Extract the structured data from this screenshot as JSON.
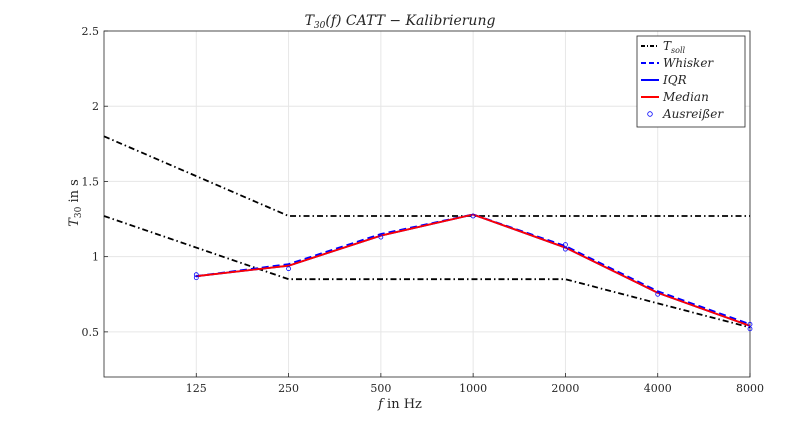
{
  "chart_data": {
    "type": "line",
    "title": {
      "main": "T",
      "sub": "30",
      "rest": "(f) CATT − Kalibrierung"
    },
    "xlabel": {
      "var": "f",
      "rest": " in Hz"
    },
    "ylabel": {
      "main": "T",
      "sub": "30",
      "rest": " in s"
    },
    "x_scale": "log2",
    "xlim": [
      62.5,
      8000
    ],
    "ylim": [
      0.2,
      2.5
    ],
    "x_ticks": [
      125,
      250,
      500,
      1000,
      2000,
      4000,
      8000
    ],
    "x_tick_labels": [
      "125",
      "250",
      "500",
      "1000",
      "2000",
      "4000",
      "8000"
    ],
    "y_ticks": [
      0.5,
      1,
      1.5,
      2,
      2.5
    ],
    "y_tick_labels": [
      "0.5",
      "1",
      "1.5",
      "2",
      "2.5"
    ],
    "grid": true,
    "legend_position": "top-right",
    "series": [
      {
        "name": "T_soll",
        "legend": {
          "main": "T",
          "sub": "soll"
        },
        "style": "dashdot",
        "color": "#000000",
        "upper": {
          "x": [
            62.5,
            250,
            8000
          ],
          "y": [
            1.8,
            1.27,
            1.27
          ]
        },
        "lower": {
          "x": [
            62.5,
            250,
            2000,
            8000
          ],
          "y": [
            1.27,
            0.85,
            0.85,
            0.53
          ]
        }
      },
      {
        "name": "Whisker",
        "legend": {
          "main": "Whisker"
        },
        "style": "dashed",
        "color": "#0000ff",
        "x": [
          125,
          250,
          500,
          1000,
          2000,
          4000,
          8000
        ],
        "y": [
          0.87,
          0.95,
          1.15,
          1.28,
          1.07,
          0.77,
          0.55
        ]
      },
      {
        "name": "IQR",
        "legend": {
          "main": "IQR"
        },
        "style": "solid",
        "color": "#0000ff",
        "x": [
          125,
          250,
          500,
          1000,
          2000,
          4000,
          8000
        ],
        "y": [
          0.87,
          0.94,
          1.14,
          1.28,
          1.06,
          0.76,
          0.54
        ]
      },
      {
        "name": "Median",
        "legend": {
          "main": "Median"
        },
        "style": "solid",
        "color": "#ff0000",
        "x": [
          125,
          250,
          500,
          1000,
          2000,
          4000,
          8000
        ],
        "y": [
          0.87,
          0.94,
          1.14,
          1.28,
          1.06,
          0.76,
          0.54
        ]
      },
      {
        "name": "Ausreißer",
        "legend": {
          "main": "Ausreißer"
        },
        "style": "markers",
        "color": "#0000ff",
        "x": [
          125,
          125,
          250,
          500,
          1000,
          2000,
          2000,
          4000,
          8000,
          8000
        ],
        "y": [
          0.86,
          0.88,
          0.92,
          1.13,
          1.27,
          1.05,
          1.08,
          0.75,
          0.52,
          0.55
        ]
      }
    ]
  }
}
